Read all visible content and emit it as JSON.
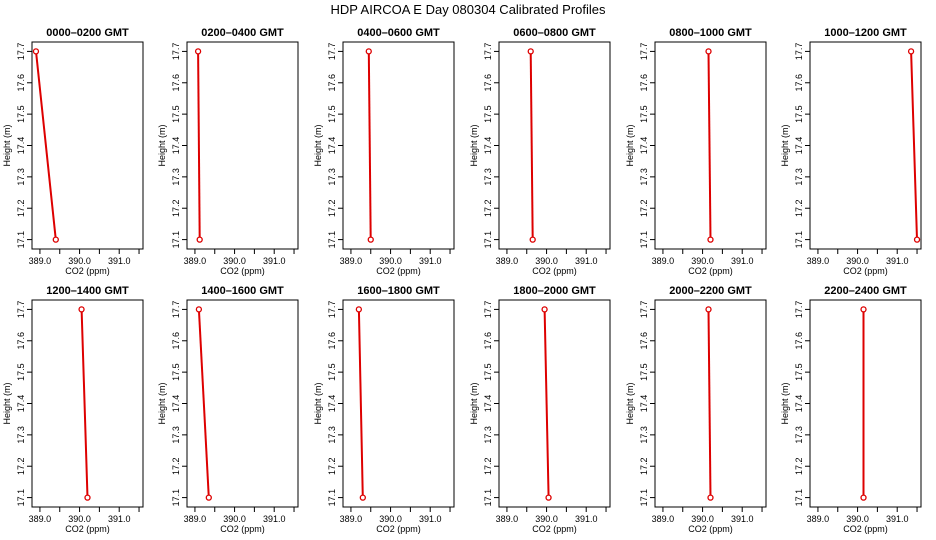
{
  "page": {
    "title": "HDP  AIRCOA E  Day 080304  Calibrated Profiles"
  },
  "colors": {
    "profile": "#dd0000",
    "axis": "#000000"
  },
  "chart_data": [
    {
      "type": "line",
      "title": "0000–0200 GMT",
      "xlabel": "CO2 (ppm)",
      "ylabel": "Height (m)",
      "xlim": [
        388.8,
        391.6
      ],
      "ylim": [
        17.07,
        17.73
      ],
      "x_ticks": [
        "389.0",
        "390.0",
        "391.0"
      ],
      "y_ticks": [
        "17.1",
        "17.2",
        "17.3",
        "17.4",
        "17.5",
        "17.6",
        "17.7"
      ],
      "series": [
        {
          "x": [
            388.9,
            389.4
          ],
          "y": [
            17.7,
            17.1
          ]
        }
      ]
    },
    {
      "type": "line",
      "title": "0200–0400 GMT",
      "xlabel": "CO2 (ppm)",
      "ylabel": "Height (m)",
      "xlim": [
        388.8,
        391.6
      ],
      "ylim": [
        17.07,
        17.73
      ],
      "x_ticks": [
        "389.0",
        "390.0",
        "391.0"
      ],
      "y_ticks": [
        "17.1",
        "17.2",
        "17.3",
        "17.4",
        "17.5",
        "17.6",
        "17.7"
      ],
      "series": [
        {
          "x": [
            389.08,
            389.12
          ],
          "y": [
            17.7,
            17.1
          ]
        }
      ]
    },
    {
      "type": "line",
      "title": "0400–0600 GMT",
      "xlabel": "CO2 (ppm)",
      "ylabel": "Height (m)",
      "xlim": [
        388.8,
        391.6
      ],
      "ylim": [
        17.07,
        17.73
      ],
      "x_ticks": [
        "389.0",
        "390.0",
        "391.0"
      ],
      "y_ticks": [
        "17.1",
        "17.2",
        "17.3",
        "17.4",
        "17.5",
        "17.6",
        "17.7"
      ],
      "series": [
        {
          "x": [
            389.45,
            389.5
          ],
          "y": [
            17.7,
            17.1
          ]
        }
      ]
    },
    {
      "type": "line",
      "title": "0600–0800 GMT",
      "xlabel": "CO2 (ppm)",
      "ylabel": "Height (m)",
      "xlim": [
        388.8,
        391.6
      ],
      "ylim": [
        17.07,
        17.73
      ],
      "x_ticks": [
        "389.0",
        "390.0",
        "391.0"
      ],
      "y_ticks": [
        "17.1",
        "17.2",
        "17.3",
        "17.4",
        "17.5",
        "17.6",
        "17.7"
      ],
      "series": [
        {
          "x": [
            389.6,
            389.65
          ],
          "y": [
            17.7,
            17.1
          ]
        }
      ]
    },
    {
      "type": "line",
      "title": "0800–1000 GMT",
      "xlabel": "CO2 (ppm)",
      "ylabel": "Height (m)",
      "xlim": [
        388.8,
        391.6
      ],
      "ylim": [
        17.07,
        17.73
      ],
      "x_ticks": [
        "389.0",
        "390.0",
        "391.0"
      ],
      "y_ticks": [
        "17.1",
        "17.2",
        "17.3",
        "17.4",
        "17.5",
        "17.6",
        "17.7"
      ],
      "series": [
        {
          "x": [
            390.15,
            390.2
          ],
          "y": [
            17.7,
            17.1
          ]
        }
      ]
    },
    {
      "type": "line",
      "title": "1000–1200 GMT",
      "xlabel": "CO2 (ppm)",
      "ylabel": "Height (m)",
      "xlim": [
        388.8,
        391.6
      ],
      "ylim": [
        17.07,
        17.73
      ],
      "x_ticks": [
        "389.0",
        "390.0",
        "391.0"
      ],
      "y_ticks": [
        "17.1",
        "17.2",
        "17.3",
        "17.4",
        "17.5",
        "17.6",
        "17.7"
      ],
      "series": [
        {
          "x": [
            391.35,
            391.5
          ],
          "y": [
            17.7,
            17.1
          ]
        }
      ]
    },
    {
      "type": "line",
      "title": "1200–1400 GMT",
      "xlabel": "CO2 (ppm)",
      "ylabel": "Height (m)",
      "xlim": [
        388.8,
        391.6
      ],
      "ylim": [
        17.07,
        17.73
      ],
      "x_ticks": [
        "389.0",
        "390.0",
        "391.0"
      ],
      "y_ticks": [
        "17.1",
        "17.2",
        "17.3",
        "17.4",
        "17.5",
        "17.6",
        "17.7"
      ],
      "series": [
        {
          "x": [
            390.05,
            390.2
          ],
          "y": [
            17.7,
            17.1
          ]
        }
      ]
    },
    {
      "type": "line",
      "title": "1400–1600 GMT",
      "xlabel": "CO2 (ppm)",
      "ylabel": "Height (m)",
      "xlim": [
        388.8,
        391.6
      ],
      "ylim": [
        17.07,
        17.73
      ],
      "x_ticks": [
        "389.0",
        "390.0",
        "391.0"
      ],
      "y_ticks": [
        "17.1",
        "17.2",
        "17.3",
        "17.4",
        "17.5",
        "17.6",
        "17.7"
      ],
      "series": [
        {
          "x": [
            389.1,
            389.35
          ],
          "y": [
            17.7,
            17.1
          ]
        }
      ]
    },
    {
      "type": "line",
      "title": "1600–1800 GMT",
      "xlabel": "CO2 (ppm)",
      "ylabel": "Height (m)",
      "xlim": [
        388.8,
        391.6
      ],
      "ylim": [
        17.07,
        17.73
      ],
      "x_ticks": [
        "389.0",
        "390.0",
        "391.0"
      ],
      "y_ticks": [
        "17.1",
        "17.2",
        "17.3",
        "17.4",
        "17.5",
        "17.6",
        "17.7"
      ],
      "series": [
        {
          "x": [
            389.2,
            389.3
          ],
          "y": [
            17.7,
            17.1
          ]
        }
      ]
    },
    {
      "type": "line",
      "title": "1800–2000 GMT",
      "xlabel": "CO2 (ppm)",
      "ylabel": "Height (m)",
      "xlim": [
        388.8,
        391.6
      ],
      "ylim": [
        17.07,
        17.73
      ],
      "x_ticks": [
        "389.0",
        "390.0",
        "391.0"
      ],
      "y_ticks": [
        "17.1",
        "17.2",
        "17.3",
        "17.4",
        "17.5",
        "17.6",
        "17.7"
      ],
      "series": [
        {
          "x": [
            389.95,
            390.05
          ],
          "y": [
            17.7,
            17.1
          ]
        }
      ]
    },
    {
      "type": "line",
      "title": "2000–2200 GMT",
      "xlabel": "CO2 (ppm)",
      "ylabel": "Height (m)",
      "xlim": [
        388.8,
        391.6
      ],
      "ylim": [
        17.07,
        17.73
      ],
      "x_ticks": [
        "389.0",
        "390.0",
        "391.0"
      ],
      "y_ticks": [
        "17.1",
        "17.2",
        "17.3",
        "17.4",
        "17.5",
        "17.6",
        "17.7"
      ],
      "series": [
        {
          "x": [
            390.15,
            390.2
          ],
          "y": [
            17.7,
            17.1
          ]
        }
      ]
    },
    {
      "type": "line",
      "title": "2200–2400 GMT",
      "xlabel": "CO2 (ppm)",
      "ylabel": "Height (m)",
      "xlim": [
        388.8,
        391.6
      ],
      "ylim": [
        17.07,
        17.73
      ],
      "x_ticks": [
        "389.0",
        "390.0",
        "391.0"
      ],
      "y_ticks": [
        "17.1",
        "17.2",
        "17.3",
        "17.4",
        "17.5",
        "17.6",
        "17.7"
      ],
      "series": [
        {
          "x": [
            390.15,
            390.15
          ],
          "y": [
            17.7,
            17.1
          ]
        }
      ]
    }
  ]
}
